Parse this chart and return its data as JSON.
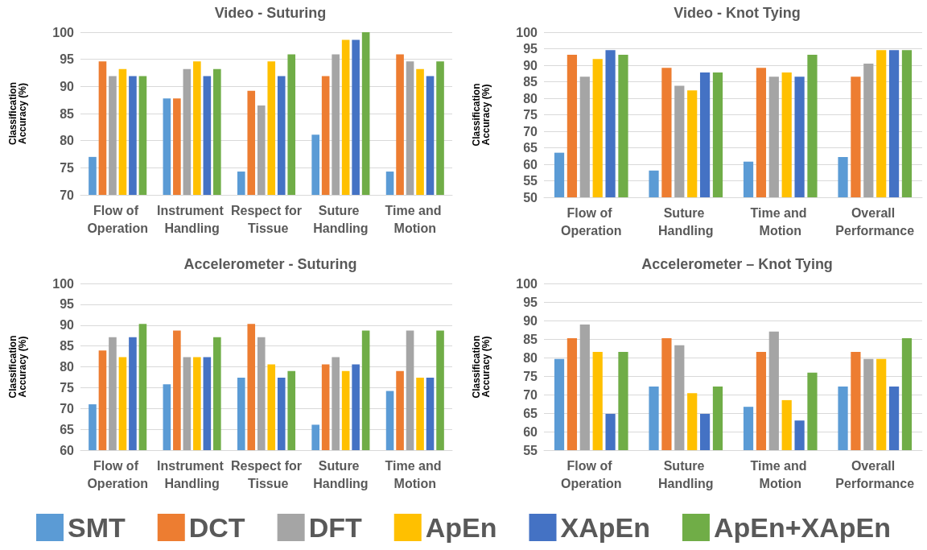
{
  "chart_data": [
    {
      "type": "bar",
      "title": "Video - Suturing",
      "ylabel": "Classification Accuracy (%)",
      "categories": [
        "Flow of Operation",
        "Instrument Handling",
        "Respect for Tissue",
        "Suture Handling",
        "Time and Motion"
      ],
      "ylim": [
        70,
        100
      ],
      "yticks": [
        70,
        75,
        80,
        85,
        90,
        95,
        100
      ],
      "grid": "y",
      "legend": "bottom",
      "series": [
        {
          "name": "SMT",
          "color": "#5b9bd5",
          "values": [
            77,
            87.8,
            74.3,
            81.1,
            74.3
          ]
        },
        {
          "name": "DCT",
          "color": "#ed7d31",
          "values": [
            94.6,
            87.8,
            89.2,
            91.9,
            95.9
          ]
        },
        {
          "name": "DFT",
          "color": "#a5a5a5",
          "values": [
            91.9,
            93.2,
            86.5,
            95.9,
            94.6
          ]
        },
        {
          "name": "ApEn",
          "color": "#ffc000",
          "values": [
            93.2,
            94.6,
            94.6,
            98.6,
            93.2
          ]
        },
        {
          "name": "XApEn",
          "color": "#4472c4",
          "values": [
            91.9,
            91.9,
            91.9,
            98.6,
            91.9
          ]
        },
        {
          "name": "ApEn+XApEn",
          "color": "#70ad47",
          "values": [
            91.9,
            93.2,
            95.9,
            100,
            94.6
          ]
        }
      ]
    },
    {
      "type": "bar",
      "title": "Video - Knot Tying",
      "ylabel": "Classification Accuracy (%)",
      "categories": [
        "Flow of Operation",
        "Suture Handling",
        "Time and Motion",
        "Overall Performance"
      ],
      "ylim": [
        50,
        100
      ],
      "yticks": [
        50,
        55,
        60,
        65,
        70,
        75,
        80,
        85,
        90,
        95,
        100
      ],
      "grid": "y",
      "legend": "bottom",
      "series": [
        {
          "name": "SMT",
          "color": "#5b9bd5",
          "values": [
            63.5,
            58.1,
            60.8,
            62.2
          ]
        },
        {
          "name": "DCT",
          "color": "#ed7d31",
          "values": [
            93.2,
            89.2,
            89.2,
            86.5
          ]
        },
        {
          "name": "DFT",
          "color": "#a5a5a5",
          "values": [
            86.5,
            83.8,
            86.5,
            90.5
          ]
        },
        {
          "name": "ApEn",
          "color": "#ffc000",
          "values": [
            91.9,
            82.4,
            87.8,
            94.6
          ]
        },
        {
          "name": "XApEn",
          "color": "#4472c4",
          "values": [
            94.6,
            87.8,
            86.5,
            94.6
          ]
        },
        {
          "name": "ApEn+XApEn",
          "color": "#70ad47",
          "values": [
            93.2,
            87.8,
            93.2,
            94.6
          ]
        }
      ]
    },
    {
      "type": "bar",
      "title": "Accelerometer - Suturing",
      "ylabel": "Classification Accuracy (%)",
      "categories": [
        "Flow of Operation",
        "Instrument Handling",
        "Respect for Tissue",
        "Suture Handling",
        "Time and Motion"
      ],
      "ylim": [
        60,
        100
      ],
      "yticks": [
        60,
        65,
        70,
        75,
        80,
        85,
        90,
        95,
        100
      ],
      "grid": "y",
      "legend": "bottom",
      "series": [
        {
          "name": "SMT",
          "color": "#5b9bd5",
          "values": [
            71,
            75.8,
            77.4,
            66.1,
            74.2
          ]
        },
        {
          "name": "DCT",
          "color": "#ed7d31",
          "values": [
            83.9,
            88.7,
            90.3,
            80.6,
            79
          ]
        },
        {
          "name": "DFT",
          "color": "#a5a5a5",
          "values": [
            87.1,
            82.3,
            87.1,
            82.3,
            88.7
          ]
        },
        {
          "name": "ApEn",
          "color": "#ffc000",
          "values": [
            82.3,
            82.3,
            80.6,
            79,
            77.4
          ]
        },
        {
          "name": "XApEn",
          "color": "#4472c4",
          "values": [
            87.1,
            82.3,
            77.4,
            80.6,
            77.4
          ]
        },
        {
          "name": "ApEn+XApEn",
          "color": "#70ad47",
          "values": [
            90.3,
            87.1,
            79,
            88.7,
            88.7
          ]
        }
      ]
    },
    {
      "type": "bar",
      "title": "Accelerometer – Knot Tying",
      "ylabel": "Classification Accuracy (%)",
      "categories": [
        "Flow of Operation",
        "Suture Handling",
        "Time and Motion",
        "Overall Performance"
      ],
      "ylim": [
        55,
        100
      ],
      "yticks": [
        55,
        60,
        65,
        70,
        75,
        80,
        85,
        90,
        95,
        100
      ],
      "grid": "y",
      "legend": "bottom",
      "series": [
        {
          "name": "SMT",
          "color": "#5b9bd5",
          "values": [
            79.6,
            72.2,
            66.7,
            72.2
          ]
        },
        {
          "name": "DCT",
          "color": "#ed7d31",
          "values": [
            85.2,
            85.2,
            81.5,
            81.5
          ]
        },
        {
          "name": "DFT",
          "color": "#a5a5a5",
          "values": [
            88.9,
            83.3,
            87,
            79.6
          ]
        },
        {
          "name": "ApEn",
          "color": "#ffc000",
          "values": [
            81.5,
            70.4,
            68.5,
            79.6
          ]
        },
        {
          "name": "XApEn",
          "color": "#4472c4",
          "values": [
            64.8,
            64.8,
            63,
            72.2
          ]
        },
        {
          "name": "ApEn+XApEn",
          "color": "#70ad47",
          "values": [
            81.5,
            72.2,
            75.9,
            85.2
          ]
        }
      ]
    }
  ]
}
